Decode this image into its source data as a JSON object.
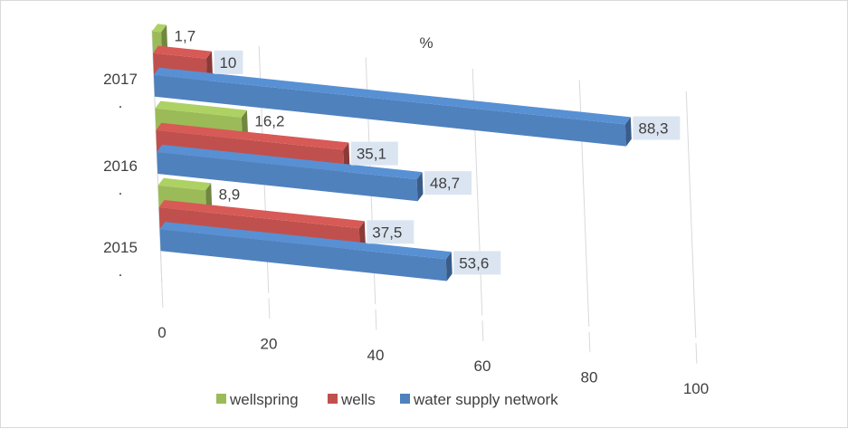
{
  "chart_data": {
    "type": "bar",
    "orientation": "horizontal",
    "title": "%",
    "categories": [
      "2015\n.",
      "2016\n.",
      "2017\n."
    ],
    "category_labels": [
      {
        "line1": "2015",
        "line2": "."
      },
      {
        "line1": "2016",
        "line2": "."
      },
      {
        "line1": "2017",
        "line2": "."
      }
    ],
    "series": [
      {
        "name": "wellspring",
        "color": "#9bbb59",
        "values": [
          8.9,
          16.2,
          1.7
        ],
        "labels": [
          "8,9",
          "16,2",
          "1,7"
        ]
      },
      {
        "name": "wells",
        "color": "#c0504d",
        "values": [
          37.5,
          35.1,
          10
        ],
        "labels": [
          "37,5",
          "35,1",
          "10"
        ]
      },
      {
        "name": "water supply network",
        "color": "#4f81bd",
        "values": [
          53.6,
          48.7,
          88.3
        ],
        "labels": [
          "53,6",
          "48,7",
          "88,3"
        ]
      }
    ],
    "x_ticks": [
      "0",
      "20",
      "40",
      "60",
      "80",
      "100"
    ],
    "xlim": [
      0,
      100
    ],
    "grid": true,
    "legend": "bottom",
    "perspective_3d": true
  }
}
